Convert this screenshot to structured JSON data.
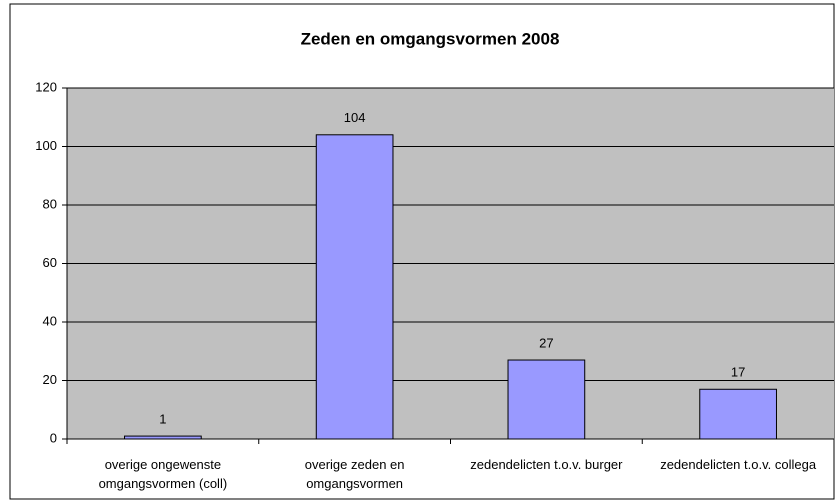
{
  "chart_data": {
    "type": "bar",
    "title": "Zeden en omgangsvormen 2008",
    "categories": [
      "overige ongewenste omgangsvormen (coll)",
      "overige zeden en omgangsvormen",
      "zedendelicten t.o.v. burger",
      "zedendelicten t.o.v. collega"
    ],
    "values": [
      1,
      104,
      27,
      17
    ],
    "color": "#9999ff",
    "plot_background": "#c0c0c0",
    "ylim": [
      0,
      120
    ],
    "yticks": [
      0,
      20,
      40,
      60,
      80,
      100,
      120
    ],
    "grid": true
  }
}
